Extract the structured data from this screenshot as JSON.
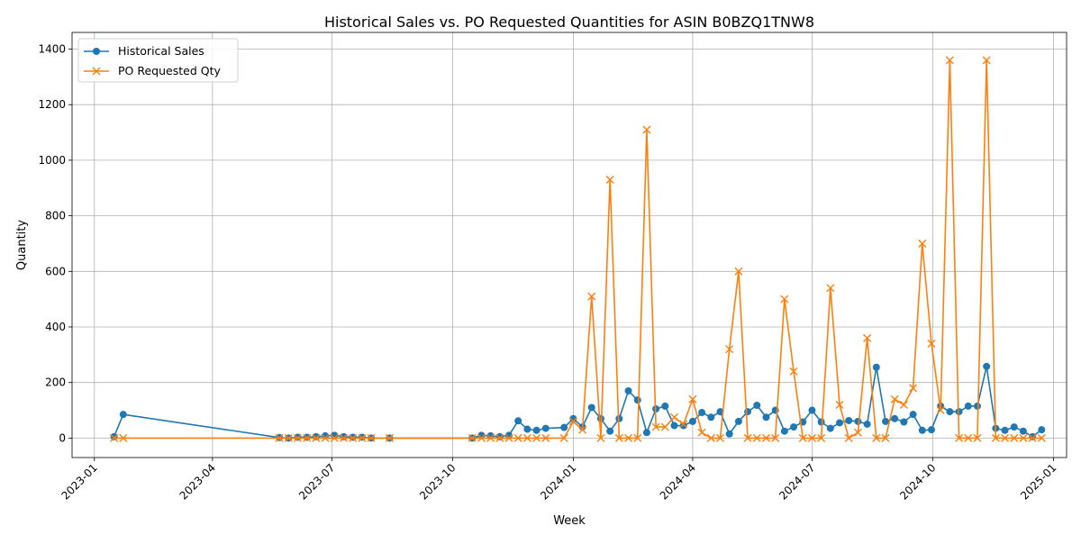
{
  "chart_data": {
    "type": "line",
    "title": "Historical Sales vs. PO Requested Quantities for ASIN B0BZQ1TNW8",
    "xlabel": "Week",
    "ylabel": "Quantity",
    "xlim": [
      "2022-12-15",
      "2025-01-11"
    ],
    "ylim": [
      -70,
      1460
    ],
    "x_ticks": [
      {
        "date": "2023-01-01",
        "label": "2023-01"
      },
      {
        "date": "2023-04-01",
        "label": "2023-04"
      },
      {
        "date": "2023-07-01",
        "label": "2023-07"
      },
      {
        "date": "2023-10-01",
        "label": "2023-10"
      },
      {
        "date": "2024-01-01",
        "label": "2024-01"
      },
      {
        "date": "2024-04-01",
        "label": "2024-04"
      },
      {
        "date": "2024-07-01",
        "label": "2024-07"
      },
      {
        "date": "2024-10-01",
        "label": "2024-10"
      },
      {
        "date": "2025-01-01",
        "label": "2025-01"
      }
    ],
    "y_ticks": [
      0,
      200,
      400,
      600,
      800,
      1000,
      1200,
      1400
    ],
    "grid": true,
    "legend_position": "top-left",
    "series": [
      {
        "name": "Historical Sales",
        "color": "#1f77b4",
        "marker": "circle",
        "points": [
          [
            "2023-01-16",
            5
          ],
          [
            "2023-01-23",
            85
          ],
          [
            "2023-05-22",
            2
          ],
          [
            "2023-05-29",
            0
          ],
          [
            "2023-06-05",
            3
          ],
          [
            "2023-06-12",
            3
          ],
          [
            "2023-06-19",
            5
          ],
          [
            "2023-06-26",
            8
          ],
          [
            "2023-07-03",
            10
          ],
          [
            "2023-07-10",
            5
          ],
          [
            "2023-07-17",
            3
          ],
          [
            "2023-07-24",
            3
          ],
          [
            "2023-07-31",
            0
          ],
          [
            "2023-08-14",
            0
          ],
          [
            "2023-10-16",
            0
          ],
          [
            "2023-10-23",
            10
          ],
          [
            "2023-10-30",
            8
          ],
          [
            "2023-11-06",
            5
          ],
          [
            "2023-11-13",
            10
          ],
          [
            "2023-11-20",
            62
          ],
          [
            "2023-11-27",
            32
          ],
          [
            "2023-12-04",
            28
          ],
          [
            "2023-12-11",
            35
          ],
          [
            "2023-12-25",
            38
          ],
          [
            "2024-01-01",
            70
          ],
          [
            "2024-01-08",
            40
          ],
          [
            "2024-01-15",
            110
          ],
          [
            "2024-01-22",
            70
          ],
          [
            "2024-01-29",
            25
          ],
          [
            "2024-02-05",
            70
          ],
          [
            "2024-02-12",
            170
          ],
          [
            "2024-02-19",
            137
          ],
          [
            "2024-02-26",
            20
          ],
          [
            "2024-03-04",
            105
          ],
          [
            "2024-03-11",
            115
          ],
          [
            "2024-03-18",
            45
          ],
          [
            "2024-03-25",
            45
          ],
          [
            "2024-04-01",
            60
          ],
          [
            "2024-04-08",
            92
          ],
          [
            "2024-04-15",
            75
          ],
          [
            "2024-04-22",
            95
          ],
          [
            "2024-04-29",
            15
          ],
          [
            "2024-05-06",
            60
          ],
          [
            "2024-05-13",
            95
          ],
          [
            "2024-05-20",
            118
          ],
          [
            "2024-05-27",
            75
          ],
          [
            "2024-06-03",
            100
          ],
          [
            "2024-06-10",
            25
          ],
          [
            "2024-06-17",
            40
          ],
          [
            "2024-06-24",
            58
          ],
          [
            "2024-07-01",
            100
          ],
          [
            "2024-07-08",
            58
          ],
          [
            "2024-07-15",
            35
          ],
          [
            "2024-07-22",
            55
          ],
          [
            "2024-07-29",
            63
          ],
          [
            "2024-08-05",
            60
          ],
          [
            "2024-08-12",
            50
          ],
          [
            "2024-08-19",
            255
          ],
          [
            "2024-08-26",
            60
          ],
          [
            "2024-09-02",
            70
          ],
          [
            "2024-09-09",
            58
          ],
          [
            "2024-09-16",
            85
          ],
          [
            "2024-09-23",
            28
          ],
          [
            "2024-09-30",
            30
          ],
          [
            "2024-10-07",
            115
          ],
          [
            "2024-10-14",
            95
          ],
          [
            "2024-10-21",
            95
          ],
          [
            "2024-10-28",
            115
          ],
          [
            "2024-11-04",
            115
          ],
          [
            "2024-11-11",
            258
          ],
          [
            "2024-11-18",
            35
          ],
          [
            "2024-11-25",
            28
          ],
          [
            "2024-12-02",
            40
          ],
          [
            "2024-12-09",
            25
          ],
          [
            "2024-12-16",
            5
          ],
          [
            "2024-12-23",
            30
          ]
        ]
      },
      {
        "name": "PO Requested Qty",
        "color": "#ff7f0e",
        "marker": "x",
        "points": [
          [
            "2023-01-16",
            0
          ],
          [
            "2023-01-23",
            0
          ],
          [
            "2023-05-22",
            0
          ],
          [
            "2023-05-29",
            0
          ],
          [
            "2023-06-05",
            0
          ],
          [
            "2023-06-12",
            0
          ],
          [
            "2023-06-19",
            0
          ],
          [
            "2023-06-26",
            0
          ],
          [
            "2023-07-03",
            0
          ],
          [
            "2023-07-10",
            0
          ],
          [
            "2023-07-17",
            0
          ],
          [
            "2023-07-24",
            0
          ],
          [
            "2023-07-31",
            0
          ],
          [
            "2023-08-14",
            0
          ],
          [
            "2023-10-16",
            0
          ],
          [
            "2023-10-23",
            0
          ],
          [
            "2023-10-30",
            0
          ],
          [
            "2023-11-06",
            0
          ],
          [
            "2023-11-13",
            0
          ],
          [
            "2023-11-20",
            0
          ],
          [
            "2023-11-27",
            0
          ],
          [
            "2023-12-04",
            0
          ],
          [
            "2023-12-11",
            0
          ],
          [
            "2023-12-25",
            0
          ],
          [
            "2024-01-01",
            60
          ],
          [
            "2024-01-08",
            30
          ],
          [
            "2024-01-15",
            510
          ],
          [
            "2024-01-22",
            0
          ],
          [
            "2024-01-29",
            930
          ],
          [
            "2024-02-05",
            0
          ],
          [
            "2024-02-12",
            0
          ],
          [
            "2024-02-19",
            0
          ],
          [
            "2024-02-26",
            1110
          ],
          [
            "2024-03-04",
            40
          ],
          [
            "2024-03-11",
            40
          ],
          [
            "2024-03-18",
            75
          ],
          [
            "2024-03-25",
            50
          ],
          [
            "2024-04-01",
            140
          ],
          [
            "2024-04-08",
            20
          ],
          [
            "2024-04-15",
            0
          ],
          [
            "2024-04-22",
            0
          ],
          [
            "2024-04-29",
            320
          ],
          [
            "2024-05-06",
            600
          ],
          [
            "2024-05-13",
            0
          ],
          [
            "2024-05-20",
            0
          ],
          [
            "2024-05-27",
            0
          ],
          [
            "2024-06-03",
            0
          ],
          [
            "2024-06-10",
            500
          ],
          [
            "2024-06-17",
            240
          ],
          [
            "2024-06-24",
            0
          ],
          [
            "2024-07-01",
            0
          ],
          [
            "2024-07-08",
            0
          ],
          [
            "2024-07-15",
            540
          ],
          [
            "2024-07-22",
            120
          ],
          [
            "2024-07-29",
            0
          ],
          [
            "2024-08-05",
            20
          ],
          [
            "2024-08-12",
            360
          ],
          [
            "2024-08-19",
            0
          ],
          [
            "2024-08-26",
            0
          ],
          [
            "2024-09-02",
            140
          ],
          [
            "2024-09-09",
            120
          ],
          [
            "2024-09-16",
            180
          ],
          [
            "2024-09-23",
            700
          ],
          [
            "2024-09-30",
            340
          ],
          [
            "2024-10-07",
            100
          ],
          [
            "2024-10-14",
            1360
          ],
          [
            "2024-10-21",
            0
          ],
          [
            "2024-10-28",
            0
          ],
          [
            "2024-11-04",
            0
          ],
          [
            "2024-11-11",
            1360
          ],
          [
            "2024-11-18",
            0
          ],
          [
            "2024-11-25",
            0
          ],
          [
            "2024-12-02",
            0
          ],
          [
            "2024-12-09",
            0
          ],
          [
            "2024-12-16",
            0
          ],
          [
            "2024-12-23",
            0
          ]
        ]
      }
    ]
  }
}
